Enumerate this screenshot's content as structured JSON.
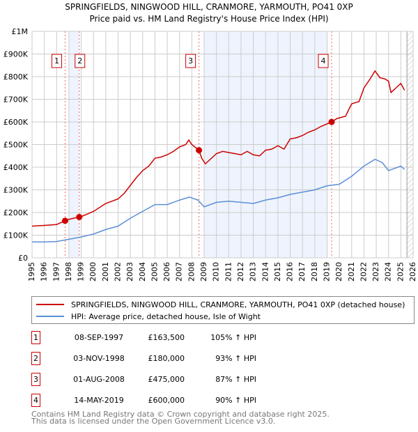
{
  "chart_data": {
    "type": "line",
    "title": "SPRINGFIELDS, NINGWOOD HILL, CRANMORE, YARMOUTH, PO41 0XP",
    "subtitle": "Price paid vs. HM Land Registry's House Price Index (HPI)",
    "xlim": [
      1995,
      2026
    ],
    "ylim": [
      0,
      1000000
    ],
    "x_ticks": [
      "1995",
      "1996",
      "1997",
      "1998",
      "1999",
      "2000",
      "2001",
      "2002",
      "2003",
      "2004",
      "2005",
      "2006",
      "2007",
      "2008",
      "2009",
      "2010",
      "2011",
      "2012",
      "2013",
      "2014",
      "2015",
      "2016",
      "2017",
      "2018",
      "2019",
      "2020",
      "2021",
      "2022",
      "2023",
      "2024",
      "2025",
      "2026"
    ],
    "y_ticks": [
      {
        "v": 0,
        "label": "£0"
      },
      {
        "v": 100000,
        "label": "£100K"
      },
      {
        "v": 200000,
        "label": "£200K"
      },
      {
        "v": 300000,
        "label": "£300K"
      },
      {
        "v": 400000,
        "label": "£400K"
      },
      {
        "v": 500000,
        "label": "£500K"
      },
      {
        "v": 600000,
        "label": "£600K"
      },
      {
        "v": 700000,
        "label": "£700K"
      },
      {
        "v": 800000,
        "label": "£800K"
      },
      {
        "v": 900000,
        "label": "£900K"
      },
      {
        "v": 1000000,
        "label": "£1M"
      }
    ],
    "grid": true,
    "series": [
      {
        "name": "SPRINGFIELDS, NINGWOOD HILL, CRANMORE, YARMOUTH, PO41 0XP (detached house)",
        "color": "#cc0000",
        "x": [
          1995,
          1996,
          1997,
          1997.69,
          1998,
          1998.84,
          1999,
          2000,
          2001,
          2002,
          2002.5,
          2003,
          2003.5,
          2004,
          2004.5,
          2005,
          2005.5,
          2006,
          2006.5,
          2007,
          2007.5,
          2007.75,
          2008,
          2008.58,
          2008.8,
          2009.1,
          2009.5,
          2010,
          2010.5,
          2011,
          2011.5,
          2012,
          2012.5,
          2013,
          2013.5,
          2014,
          2014.5,
          2015,
          2015.5,
          2016,
          2016.5,
          2017,
          2017.5,
          2018,
          2018.5,
          2019.37,
          2019.8,
          2020.5,
          2021,
          2021.6,
          2022,
          2022.5,
          2022.9,
          2023.3,
          2023.7,
          2024,
          2024.2,
          2024.6,
          2025,
          2025.3
        ],
        "y": [
          140000,
          143000,
          147000,
          163500,
          170000,
          180000,
          182000,
          205000,
          240000,
          260000,
          285000,
          320000,
          355000,
          385000,
          405000,
          440000,
          445000,
          455000,
          470000,
          490000,
          500000,
          520000,
          500000,
          475000,
          440000,
          415000,
          435000,
          460000,
          470000,
          465000,
          460000,
          455000,
          470000,
          455000,
          450000,
          475000,
          480000,
          495000,
          480000,
          525000,
          530000,
          540000,
          555000,
          565000,
          580000,
          600000,
          615000,
          625000,
          680000,
          690000,
          750000,
          790000,
          825000,
          795000,
          790000,
          780000,
          730000,
          750000,
          770000,
          740000
        ]
      },
      {
        "name": "HPI: Average price, detached house, Isle of Wight",
        "color": "#5b8fd6",
        "x": [
          1995,
          1996,
          1997,
          1998,
          1999,
          2000,
          2001,
          2002,
          2003,
          2004,
          2005,
          2006,
          2007,
          2007.8,
          2008.5,
          2009,
          2010,
          2011,
          2012,
          2013,
          2014,
          2015,
          2016,
          2017,
          2018,
          2019,
          2020,
          2021,
          2022,
          2022.9,
          2023.5,
          2024,
          2025,
          2025.3
        ],
        "y": [
          70000,
          70000,
          72000,
          82000,
          92000,
          105000,
          125000,
          140000,
          175000,
          205000,
          235000,
          235000,
          255000,
          268000,
          255000,
          225000,
          245000,
          250000,
          245000,
          240000,
          255000,
          265000,
          280000,
          290000,
          300000,
          318000,
          325000,
          360000,
          405000,
          435000,
          420000,
          385000,
          405000,
          390000
        ]
      }
    ],
    "sales": [
      {
        "label": "1",
        "x": 1997.69,
        "y": 163500,
        "date": "08-SEP-1997",
        "price": "£163,500",
        "hpi": "105% ↑ HPI"
      },
      {
        "label": "2",
        "x": 1998.84,
        "y": 180000,
        "date": "03-NOV-1998",
        "price": "£180,000",
        "hpi": "93% ↑ HPI"
      },
      {
        "label": "3",
        "x": 2008.58,
        "y": 475000,
        "date": "01-AUG-2008",
        "price": "£475,000",
        "hpi": "87% ↑ HPI"
      },
      {
        "label": "4",
        "x": 2019.37,
        "y": 600000,
        "date": "14-MAY-2019",
        "price": "£600,000",
        "hpi": "90% ↑ HPI"
      }
    ],
    "shaded_ranges": [
      [
        1998.0,
        1998.84
      ],
      [
        2009.0,
        2019.0
      ]
    ],
    "projection_from": 2025.5
  },
  "footer": {
    "line1": "Contains HM Land Registry data © Crown copyright and database right 2025.",
    "line2": "This data is licensed under the Open Government Licence v3.0."
  }
}
